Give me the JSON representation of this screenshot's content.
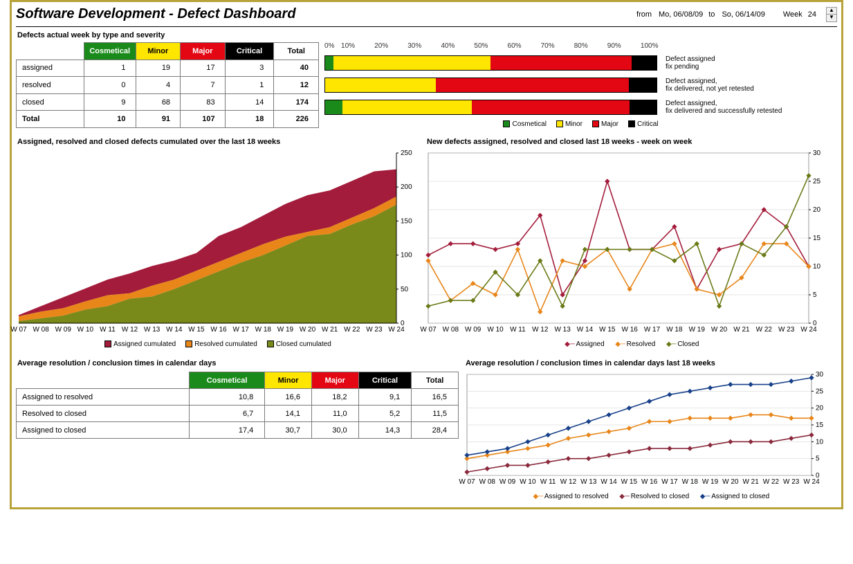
{
  "header": {
    "title": "Software Development - Defect Dashboard",
    "from_lbl": "from",
    "from": "Mo, 06/08/09",
    "to_lbl": "to",
    "to": "So, 06/14/09",
    "week_lbl": "Week",
    "week": "24"
  },
  "colors": {
    "cosmetical": "#1a8a1a",
    "minor": "#ffe600",
    "major": "#e30613",
    "critical": "#000000",
    "assigned_area": "#a31c3b",
    "resolved_area": "#e8861a",
    "closed_area": "#7a8a1a",
    "assigned_line": "#a31c3b",
    "resolved_line": "#e8861a",
    "closed_line": "#6b7a18",
    "a2r": "#e8861a",
    "r2c": "#8a2a3d",
    "a2c": "#18418a"
  },
  "section1": {
    "title": "Defects actual week by type and severity",
    "cols": [
      "Cosmetical",
      "Minor",
      "Major",
      "Critical",
      "Total"
    ],
    "rows": [
      {
        "label": "assigned",
        "v": [
          1,
          19,
          17,
          3,
          40
        ]
      },
      {
        "label": "resolved",
        "v": [
          0,
          4,
          7,
          1,
          12
        ]
      },
      {
        "label": "closed",
        "v": [
          9,
          68,
          83,
          14,
          174
        ]
      }
    ],
    "total": {
      "label": "Total",
      "v": [
        10,
        91,
        107,
        18,
        226
      ]
    }
  },
  "stacked": {
    "axis": [
      "0%",
      "10%",
      "20%",
      "30%",
      "40%",
      "50%",
      "60%",
      "70%",
      "80%",
      "90%",
      "100%"
    ],
    "barwidth": 481,
    "rows": [
      {
        "pct": [
          2.5,
          47.5,
          42.5,
          7.5
        ],
        "note": "Defect assigned\nfix pending"
      },
      {
        "pct": [
          0,
          33.3,
          58.4,
          8.3
        ],
        "note": "Defect assigned,\nfix delivered, not yet retested"
      },
      {
        "pct": [
          5.2,
          39.0,
          47.7,
          8.1
        ],
        "note": "Defect assigned,\nfix delivered and successfully retested"
      }
    ],
    "legend": [
      "Cosmetical",
      "Minor",
      "Major",
      "Critical"
    ]
  },
  "area": {
    "title": "Assigned, resolved and closed defects cumulated over the last 18 weeks",
    "x": [
      "W 07",
      "W 08",
      "W 09",
      "W 10",
      "W 11",
      "W 12",
      "W 13",
      "W 14",
      "W 15",
      "W 16",
      "W 17",
      "W 18",
      "W 19",
      "W 20",
      "W 21",
      "W 22",
      "W 23",
      "W 24"
    ],
    "yticks": [
      0,
      50,
      100,
      150,
      200,
      250
    ],
    "assigned": [
      12,
      25,
      38,
      51,
      64,
      73,
      84,
      92,
      103,
      128,
      141,
      158,
      175,
      188,
      195,
      209,
      223,
      226
    ],
    "resolved": [
      10,
      17,
      22,
      32,
      41,
      44,
      55,
      64,
      77,
      90,
      103,
      116,
      127,
      134,
      141,
      155,
      169,
      186
    ],
    "closed": [
      3,
      7,
      11,
      20,
      25,
      36,
      39,
      50,
      63,
      76,
      89,
      100,
      114,
      128,
      131,
      145,
      157,
      174
    ],
    "legend": [
      "Assigned cumulated",
      "Resolved cumulated",
      "Closed cumulated"
    ]
  },
  "line1": {
    "title": "New defects assigned, resolved and closed last 18 weeks - week on week",
    "x": [
      "W 07",
      "W 08",
      "W 09",
      "W 10",
      "W 11",
      "W 12",
      "W 13",
      "W 14",
      "W 15",
      "W 16",
      "W 17",
      "W 18",
      "W 19",
      "W 20",
      "W 21",
      "W 22",
      "W 23",
      "W 24"
    ],
    "yticks": [
      0,
      5,
      10,
      15,
      20,
      25,
      30
    ],
    "assigned": [
      12,
      14,
      14,
      13,
      14,
      19,
      5,
      11,
      25,
      13,
      13,
      17,
      6,
      13,
      14,
      20,
      17,
      10
    ],
    "resolved": [
      11,
      4,
      7,
      5,
      13,
      2,
      11,
      10,
      13,
      6,
      13,
      14,
      6,
      5,
      8,
      14,
      14,
      10
    ],
    "closed": [
      3,
      4,
      4,
      9,
      5,
      11,
      3,
      13,
      13,
      13,
      13,
      11,
      14,
      3,
      14,
      12,
      17,
      26
    ],
    "legend": [
      "Assigned",
      "Resolved",
      "Closed"
    ]
  },
  "table2": {
    "title": "Average resolution / conclusion times in calendar days",
    "cols": [
      "Cosmetical",
      "Minor",
      "Major",
      "Critical",
      "Total"
    ],
    "rows": [
      {
        "label": "Assigned to resolved",
        "v": [
          "10,8",
          "16,6",
          "18,2",
          "9,1",
          "16,5"
        ]
      },
      {
        "label": "Resolved to closed",
        "v": [
          "6,7",
          "14,1",
          "11,0",
          "5,2",
          "11,5"
        ]
      },
      {
        "label": "Assigned to closed",
        "v": [
          "17,4",
          "30,7",
          "30,0",
          "14,3",
          "28,4"
        ]
      }
    ]
  },
  "line2": {
    "title": "Average resolution / conclusion times in calendar days last 18 weeks",
    "x": [
      "W 07",
      "W 08",
      "W 09",
      "W 10",
      "W 11",
      "W 12",
      "W 13",
      "W 14",
      "W 15",
      "W 16",
      "W 17",
      "W 18",
      "W 19",
      "W 20",
      "W 21",
      "W 22",
      "W 23",
      "W 24"
    ],
    "yticks": [
      0,
      5,
      10,
      15,
      20,
      25,
      30
    ],
    "a2r": [
      5,
      6,
      7,
      8,
      9,
      11,
      12,
      13,
      14,
      16,
      16,
      17,
      17,
      17,
      18,
      18,
      17,
      17
    ],
    "r2c": [
      1,
      2,
      3,
      3,
      4,
      5,
      5,
      6,
      7,
      8,
      8,
      8,
      9,
      10,
      10,
      10,
      11,
      12
    ],
    "a2c": [
      6,
      7,
      8,
      10,
      12,
      14,
      16,
      18,
      20,
      22,
      24,
      25,
      26,
      27,
      27,
      27,
      28,
      29
    ],
    "legend": [
      "Assigned to resolved",
      "Resolved to closed",
      "Assigned to closed"
    ]
  }
}
